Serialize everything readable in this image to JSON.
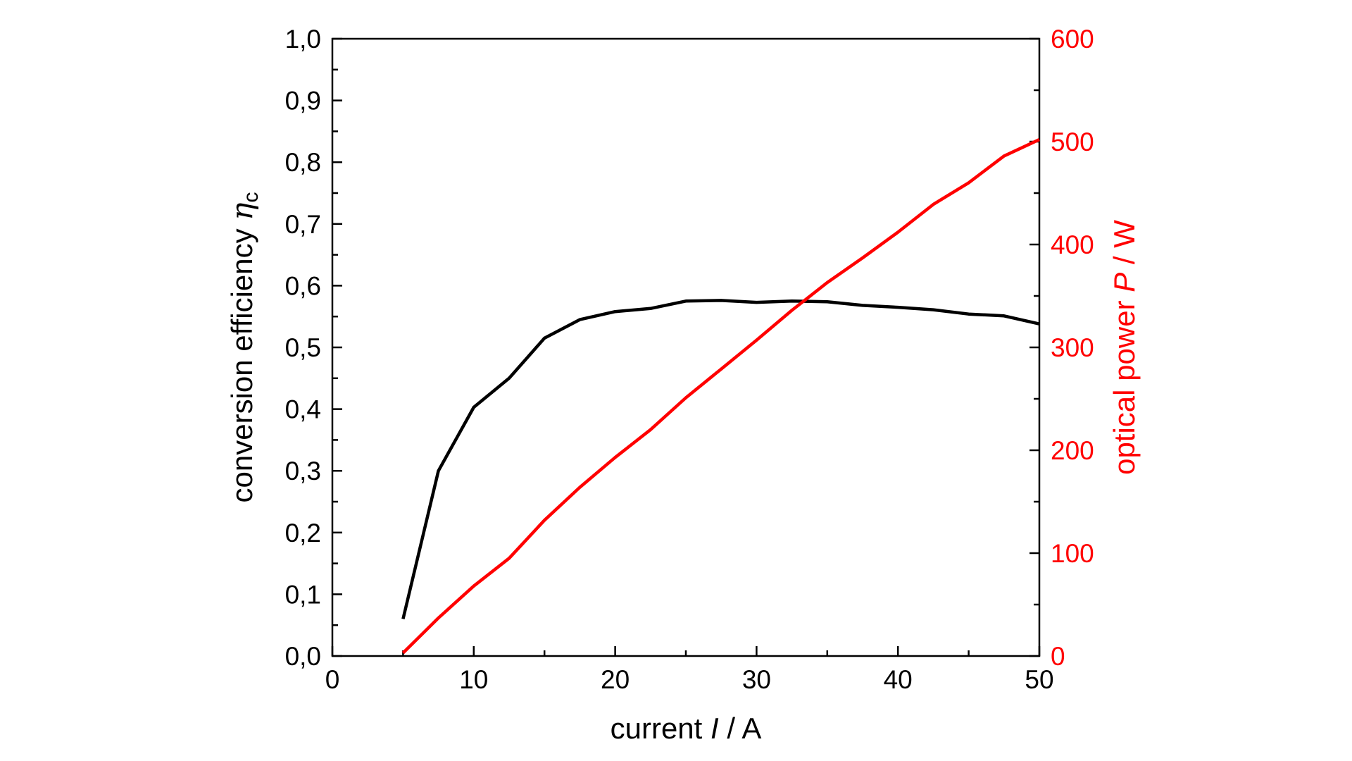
{
  "chart_data": {
    "type": "line",
    "xlabel": "current",
    "xlabel_symbol": "I",
    "xlabel_unit": "/ A",
    "ylabel_left": "conversion efficiency",
    "ylabel_left_symbol": "η",
    "ylabel_left_subscript": "c",
    "ylabel_right": "optical power",
    "ylabel_right_symbol": "P",
    "ylabel_right_unit": "/ W",
    "xlim": [
      0,
      50
    ],
    "ylim_left": [
      0.0,
      1.0
    ],
    "ylim_right": [
      0,
      600
    ],
    "x_ticks": [
      "0",
      "10",
      "20",
      "30",
      "40",
      "50"
    ],
    "y_left_ticks": [
      "0,0",
      "0,1",
      "0,2",
      "0,3",
      "0,4",
      "0,5",
      "0,6",
      "0,7",
      "0,8",
      "0,9",
      "1,0"
    ],
    "y_right_ticks": [
      "0",
      "100",
      "200",
      "300",
      "400",
      "500",
      "600"
    ],
    "grid": false,
    "colors": {
      "efficiency": "#000000",
      "power": "#ff0000",
      "axis": "#000000"
    },
    "series": [
      {
        "axis": "left",
        "color": "#000000",
        "points": [
          [
            5,
            0.06
          ],
          [
            7.5,
            0.3
          ],
          [
            10,
            0.403
          ],
          [
            12.5,
            0.45
          ],
          [
            15,
            0.515
          ],
          [
            17.5,
            0.545
          ],
          [
            20,
            0.558
          ],
          [
            22.5,
            0.563
          ],
          [
            25,
            0.575
          ],
          [
            27.5,
            0.576
          ],
          [
            30,
            0.573
          ],
          [
            32.5,
            0.575
          ],
          [
            35,
            0.574
          ],
          [
            37.5,
            0.568
          ],
          [
            40,
            0.565
          ],
          [
            42.5,
            0.561
          ],
          [
            45,
            0.554
          ],
          [
            47.5,
            0.551
          ],
          [
            50,
            0.538
          ]
        ]
      },
      {
        "axis": "right",
        "color": "#ff0000",
        "points": [
          [
            5,
            3
          ],
          [
            7.5,
            37
          ],
          [
            10,
            68
          ],
          [
            12.5,
            95
          ],
          [
            15,
            132
          ],
          [
            17.5,
            164
          ],
          [
            20,
            193
          ],
          [
            22.5,
            220
          ],
          [
            25,
            251
          ],
          [
            27.5,
            279
          ],
          [
            30,
            307
          ],
          [
            32.5,
            336
          ],
          [
            35,
            363
          ],
          [
            37.5,
            387
          ],
          [
            40,
            412
          ],
          [
            42.5,
            439
          ],
          [
            45,
            460
          ],
          [
            47.5,
            486
          ],
          [
            50,
            502
          ]
        ]
      }
    ]
  }
}
